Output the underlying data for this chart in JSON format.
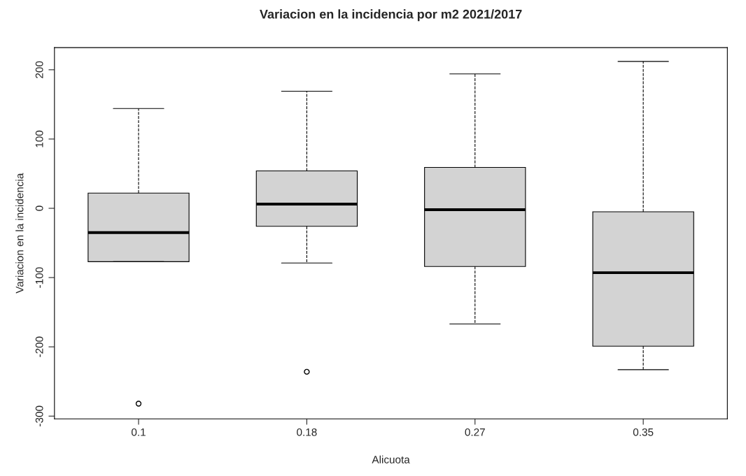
{
  "chart_data": {
    "type": "box",
    "title": "Variacion en la incidencia por m2 2021/2017",
    "xlabel": "Alicuota",
    "ylabel": "Variacion en la incidencia",
    "categories": [
      "0.1",
      "0.18",
      "0.27",
      "0.35"
    ],
    "series": [
      {
        "color": "#d3d3d3",
        "boxes": [
          {
            "low": -77,
            "q1": -77,
            "median": -35,
            "q3": 22,
            "high": 144,
            "outliers": [
              -282
            ]
          },
          {
            "low": -79,
            "q1": -26,
            "median": 6,
            "q3": 54,
            "high": 169,
            "outliers": [
              -236
            ]
          },
          {
            "low": -167,
            "q1": -84,
            "median": -2,
            "q3": 59,
            "high": 194
          },
          {
            "low": -233,
            "q1": -199,
            "median": -93,
            "q3": -5,
            "high": 212
          }
        ]
      }
    ],
    "ylim": [
      -304,
      232
    ],
    "yticks": [
      -300,
      -200,
      -100,
      0,
      100,
      200
    ],
    "grid": false
  }
}
